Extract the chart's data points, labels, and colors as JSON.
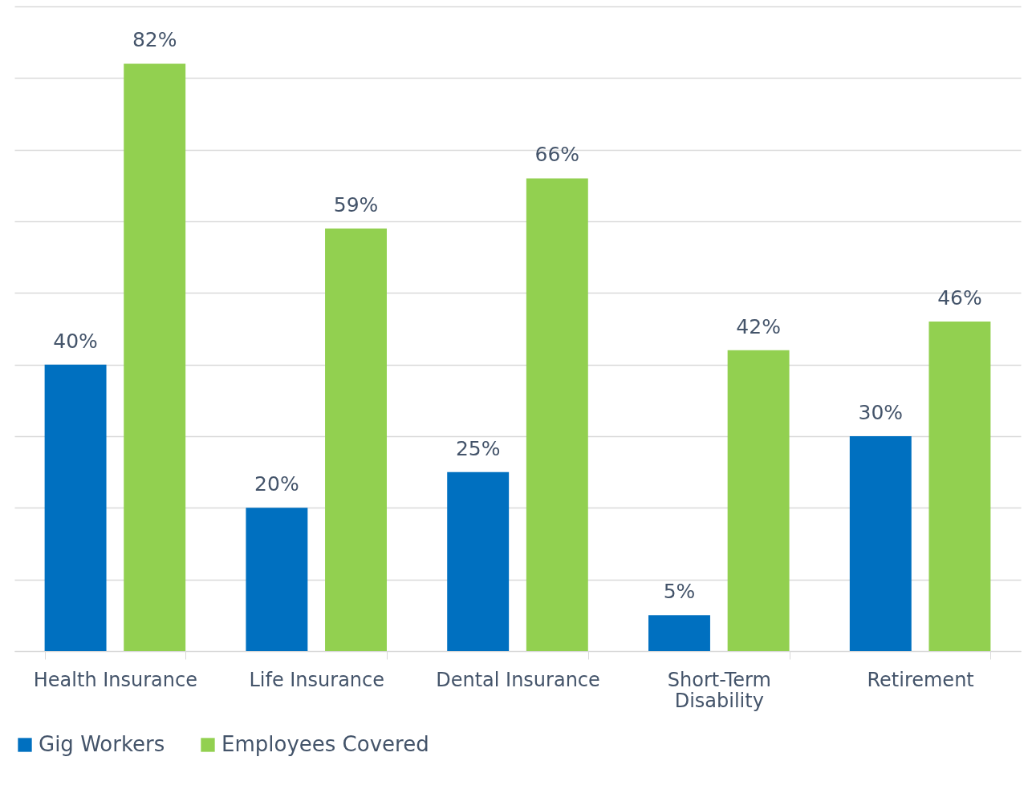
{
  "chart_data": {
    "type": "bar",
    "categories": [
      "Health Insurance",
      "Life Insurance",
      "Dental Insurance",
      "Short-Term Disability",
      "Retirement"
    ],
    "series": [
      {
        "name": "Gig Workers",
        "color": "#0070c0",
        "values": [
          40,
          20,
          25,
          5,
          30
        ],
        "value_labels": [
          "40%",
          "20%",
          "25%",
          "5%",
          "30%"
        ]
      },
      {
        "name": "Employees Covered",
        "color": "#92d050",
        "values": [
          82,
          59,
          66,
          42,
          46
        ],
        "value_labels": [
          "82%",
          "59%",
          "66%",
          "42%",
          "46%"
        ]
      }
    ],
    "tick_labels": "x",
    "grid": "y",
    "legend": "bottom"
  }
}
